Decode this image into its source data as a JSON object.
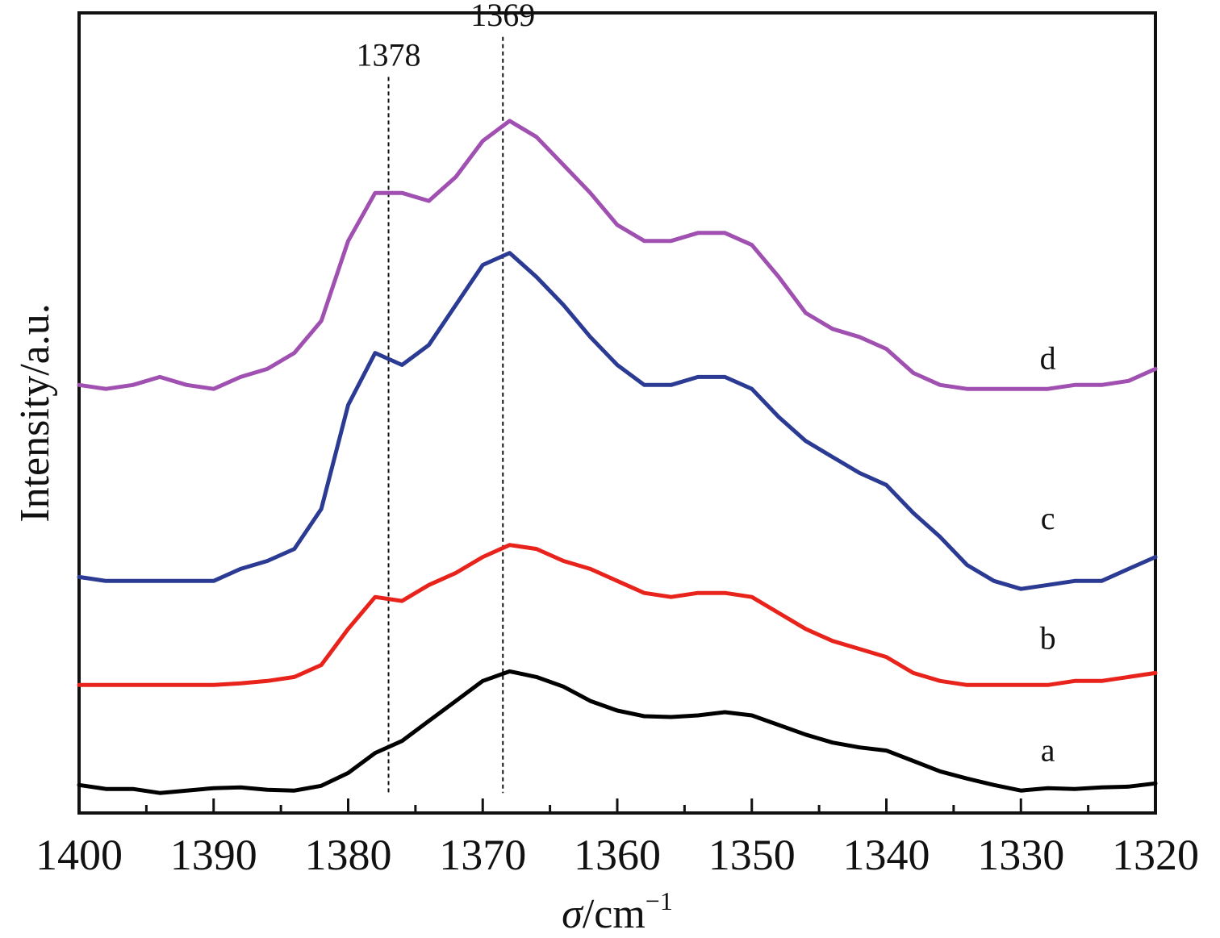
{
  "chart_data": {
    "type": "line",
    "xlabel_symbol": "σ",
    "xlabel_unit": "/cm",
    "xlabel_exp": "−1",
    "ylabel": "Intensity/a.u.",
    "xlim": [
      1400,
      1320
    ],
    "x_reversed": true,
    "xticks": [
      1400,
      1390,
      1380,
      1370,
      1360,
      1350,
      1340,
      1330,
      1320
    ],
    "xticks_minor": [
      1395,
      1385,
      1375,
      1365,
      1355,
      1345,
      1335,
      1325
    ],
    "ylim": [
      0,
      100
    ],
    "grid": false,
    "annotations": [
      {
        "label": "1378",
        "x": 1377.0,
        "y_from": 2.5,
        "y_to": 92
      },
      {
        "label": "1369",
        "x": 1368.5,
        "y_from": 2.5,
        "y_to": 97
      }
    ],
    "series": [
      {
        "name": "a",
        "color": "#000000",
        "label_at": [
          1328,
          6.5
        ],
        "x": [
          1400,
          1398,
          1396,
          1394,
          1392,
          1390,
          1388,
          1386,
          1384,
          1382,
          1380,
          1378,
          1376,
          1374,
          1372,
          1370,
          1368,
          1366,
          1364,
          1362,
          1360,
          1358,
          1356,
          1354,
          1352,
          1350,
          1348,
          1346,
          1344,
          1342,
          1340,
          1338,
          1336,
          1334,
          1332,
          1330,
          1328,
          1326,
          1324,
          1322,
          1320
        ],
        "values": [
          3.5,
          3.0,
          3.0,
          2.5,
          2.8,
          3.1,
          3.2,
          2.9,
          2.8,
          3.4,
          5.0,
          7.5,
          9.0,
          11.5,
          14.0,
          16.5,
          17.7,
          17.0,
          15.8,
          14.0,
          12.8,
          12.1,
          12.0,
          12.2,
          12.6,
          12.2,
          11.0,
          9.8,
          8.8,
          8.2,
          7.8,
          6.5,
          5.2,
          4.3,
          3.5,
          2.8,
          3.1,
          3.0,
          3.2,
          3.3,
          3.7
        ]
      },
      {
        "name": "b",
        "color": "#e8231c",
        "label_at": [
          1328,
          20.5
        ],
        "x": [
          1400,
          1398,
          1396,
          1394,
          1392,
          1390,
          1388,
          1386,
          1384,
          1382,
          1380,
          1378,
          1376,
          1374,
          1372,
          1370,
          1368,
          1366,
          1364,
          1362,
          1360,
          1358,
          1356,
          1354,
          1352,
          1350,
          1348,
          1346,
          1344,
          1342,
          1340,
          1338,
          1336,
          1334,
          1332,
          1330,
          1328,
          1326,
          1324,
          1322,
          1320
        ],
        "values": [
          16.0,
          16.0,
          16.0,
          16.0,
          16.0,
          16.0,
          16.2,
          16.5,
          17.0,
          18.5,
          23.0,
          27.0,
          26.5,
          28.5,
          30.0,
          32.0,
          33.5,
          33.0,
          31.5,
          30.5,
          29.0,
          27.5,
          27.0,
          27.5,
          27.5,
          27.0,
          25.0,
          23.0,
          21.5,
          20.5,
          19.5,
          17.5,
          16.5,
          16.0,
          16.0,
          16.0,
          16.0,
          16.5,
          16.5,
          17.0,
          17.5
        ]
      },
      {
        "name": "c",
        "color": "#2b3a93",
        "label_at": [
          1328,
          35.5
        ],
        "x": [
          1400,
          1398,
          1396,
          1394,
          1392,
          1390,
          1388,
          1386,
          1384,
          1382,
          1380,
          1378,
          1376,
          1374,
          1372,
          1370,
          1368,
          1366,
          1364,
          1362,
          1360,
          1358,
          1356,
          1354,
          1352,
          1350,
          1348,
          1346,
          1344,
          1342,
          1340,
          1338,
          1336,
          1334,
          1332,
          1330,
          1328,
          1326,
          1324,
          1322,
          1320
        ],
        "values": [
          29.5,
          29.0,
          29.0,
          29.0,
          29.0,
          29.0,
          30.5,
          31.5,
          33.0,
          38.0,
          51.0,
          57.5,
          56.0,
          58.5,
          63.5,
          68.5,
          70.0,
          67.0,
          63.5,
          59.5,
          56.0,
          53.5,
          53.5,
          54.5,
          54.5,
          53.0,
          49.5,
          46.5,
          44.5,
          42.5,
          41.0,
          37.5,
          34.5,
          31.0,
          29.0,
          28.0,
          28.5,
          29.0,
          29.0,
          30.5,
          32.0
        ]
      },
      {
        "name": "d",
        "color": "#a050b0",
        "label_at": [
          1328,
          55.5
        ],
        "x": [
          1400,
          1398,
          1396,
          1394,
          1392,
          1390,
          1388,
          1386,
          1384,
          1382,
          1380,
          1378,
          1376,
          1374,
          1372,
          1370,
          1368,
          1366,
          1364,
          1362,
          1360,
          1358,
          1356,
          1354,
          1352,
          1350,
          1348,
          1346,
          1344,
          1342,
          1340,
          1338,
          1336,
          1334,
          1332,
          1330,
          1328,
          1326,
          1324,
          1322,
          1320
        ],
        "values": [
          53.5,
          53.0,
          53.5,
          54.5,
          53.5,
          53.0,
          54.5,
          55.5,
          57.5,
          61.5,
          71.5,
          77.5,
          77.5,
          76.5,
          79.5,
          84.0,
          86.5,
          84.5,
          81.0,
          77.5,
          73.5,
          71.5,
          71.5,
          72.5,
          72.5,
          71.0,
          67.0,
          62.5,
          60.5,
          59.5,
          58.0,
          55.0,
          53.5,
          53.0,
          53.0,
          53.0,
          53.0,
          53.5,
          53.5,
          54.0,
          55.5
        ]
      }
    ]
  }
}
